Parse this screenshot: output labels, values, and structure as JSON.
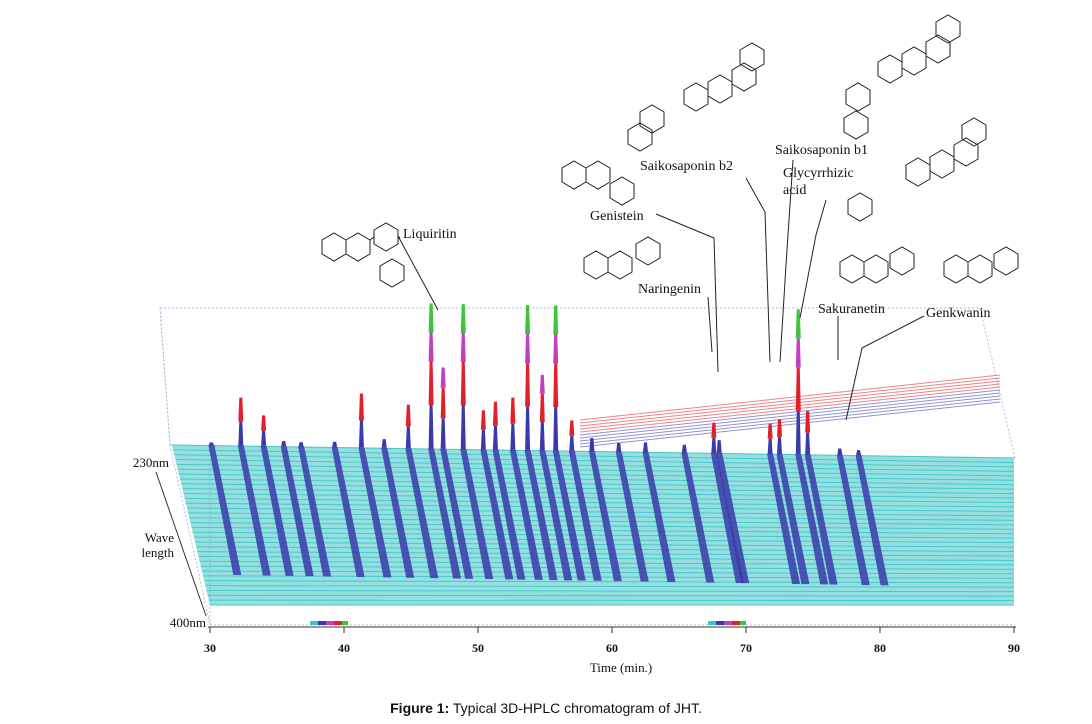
{
  "caption": {
    "prefix": "Figure 1:",
    "text": "Typical 3D-HPLC chromatogram of JHT."
  },
  "chart_data": {
    "type": "line",
    "subtype": "3d-chromatogram",
    "xlabel": "Time (min.)",
    "xlim": [
      30,
      90
    ],
    "xticks": [
      30,
      40,
      50,
      60,
      70,
      80,
      90
    ],
    "z_axis": {
      "label_line1": "Wave",
      "label_line2": "length",
      "start": "230nm",
      "end": "400nm"
    },
    "colors": {
      "baseline": "#40c4c8",
      "low": "#3a3aa8",
      "mid": "#e0202a",
      "high": "#c040c0",
      "top": "#3cc43c",
      "frame": "#b8b8e0"
    },
    "peaks": [
      {
        "t": 30.1,
        "h": 0.06
      },
      {
        "t": 32.3,
        "h": 0.55
      },
      {
        "t": 34.0,
        "h": 0.35
      },
      {
        "t": 35.5,
        "h": 0.12
      },
      {
        "t": 36.8,
        "h": 0.1
      },
      {
        "t": 39.3,
        "h": 0.12
      },
      {
        "t": 41.3,
        "h": 0.62
      },
      {
        "t": 43.0,
        "h": 0.2
      },
      {
        "t": 44.8,
        "h": 0.5
      },
      {
        "t": 46.5,
        "h": 1.0
      },
      {
        "t": 47.4,
        "h": 0.7
      },
      {
        "t": 48.9,
        "h": 1.0
      },
      {
        "t": 50.4,
        "h": 0.45
      },
      {
        "t": 51.3,
        "h": 0.55
      },
      {
        "t": 52.6,
        "h": 0.6
      },
      {
        "t": 53.7,
        "h": 1.0
      },
      {
        "t": 54.8,
        "h": 0.65
      },
      {
        "t": 55.8,
        "h": 1.0
      },
      {
        "t": 57.0,
        "h": 0.35
      },
      {
        "t": 58.5,
        "h": 0.3
      },
      {
        "t": 60.5,
        "h": 0.2
      },
      {
        "t": 62.5,
        "h": 0.22
      },
      {
        "t": 65.4,
        "h": 0.18
      },
      {
        "t": 67.6,
        "h": 0.35
      },
      {
        "t": 68.0,
        "h": 0.3
      },
      {
        "t": 71.8,
        "h": 0.35
      },
      {
        "t": 72.5,
        "h": 0.4
      },
      {
        "t": 73.9,
        "h": 1.0
      },
      {
        "t": 74.6,
        "h": 0.5
      },
      {
        "t": 77.0,
        "h": 0.15
      },
      {
        "t": 78.4,
        "h": 0.12
      }
    ],
    "compounds": [
      {
        "name": "Liquiritin",
        "t": 46.5
      },
      {
        "name": "Genistein",
        "t": 67.8
      },
      {
        "name": "Naringenin",
        "t": 67.5
      },
      {
        "name": "Saikosaponin b2",
        "t": 71.6
      },
      {
        "name": "Saikosaponin b1",
        "t": 72.3
      },
      {
        "name": "Glycyrrhizic",
        "name2": "acid",
        "t": 73.9
      },
      {
        "name": "Sakuranetin",
        "t": 77.0
      },
      {
        "name": "Genkwanin",
        "t": 78.3
      }
    ]
  }
}
